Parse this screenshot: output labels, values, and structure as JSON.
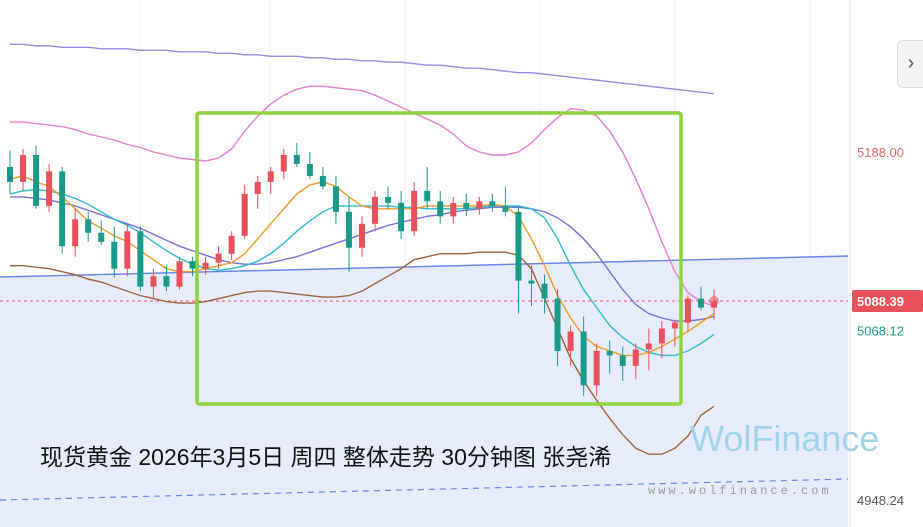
{
  "caption": "现货黄金 2026年3月5日 周四 整体走势 30分钟图 张尧浠",
  "watermark": {
    "brand": "WolFinance",
    "url": "www.wolfinance.com"
  },
  "nav": {
    "icon": "chevron-right-icon"
  },
  "colors": {
    "up": "#e8505b",
    "down": "#1a9a8a",
    "ma_fast": "#f59a23",
    "ma_mid": "#2bbcd0",
    "ma_slow": "#7a72d8",
    "bb_upper": "#e77fd1",
    "bb_lower": "#a0623a",
    "ma_long": "#9a8ae6",
    "trend_line": "#6a86e8",
    "zone_fill": "#e6ebfc",
    "highlight_box": "#8bd43c",
    "current_price": "#e8505b",
    "low_price": "#1a9a8a"
  },
  "chart_data": {
    "type": "candlestick",
    "timeframe": "30分钟",
    "y_axis_labels": [
      {
        "value": 5188.0,
        "text": "5188.00",
        "kind": "level"
      },
      {
        "value": 5088.39,
        "text": "5088.39",
        "kind": "current"
      },
      {
        "value": 5068.12,
        "text": "5068.12",
        "kind": "low"
      },
      {
        "value": 4948.24,
        "text": "4948.24",
        "kind": "support"
      }
    ],
    "current_price": 5088.39,
    "candles": [
      [
        5178,
        5189,
        5160,
        5168
      ],
      [
        5168,
        5190,
        5162,
        5186
      ],
      [
        5186,
        5192,
        5150,
        5152
      ],
      [
        5152,
        5180,
        5148,
        5175
      ],
      [
        5175,
        5178,
        5120,
        5125
      ],
      [
        5125,
        5150,
        5118,
        5143
      ],
      [
        5143,
        5148,
        5128,
        5134
      ],
      [
        5134,
        5142,
        5126,
        5128
      ],
      [
        5128,
        5138,
        5104,
        5110
      ],
      [
        5110,
        5140,
        5105,
        5135
      ],
      [
        5135,
        5138,
        5095,
        5098
      ],
      [
        5098,
        5110,
        5090,
        5105
      ],
      [
        5105,
        5112,
        5095,
        5098
      ],
      [
        5098,
        5118,
        5096,
        5115
      ],
      [
        5115,
        5118,
        5105,
        5110
      ],
      [
        5110,
        5118,
        5106,
        5114
      ],
      [
        5114,
        5125,
        5110,
        5120
      ],
      [
        5120,
        5135,
        5116,
        5132
      ],
      [
        5132,
        5166,
        5130,
        5160
      ],
      [
        5160,
        5172,
        5150,
        5168
      ],
      [
        5168,
        5178,
        5160,
        5175
      ],
      [
        5175,
        5190,
        5170,
        5186
      ],
      [
        5186,
        5194,
        5178,
        5180
      ],
      [
        5180,
        5188,
        5170,
        5172
      ],
      [
        5172,
        5178,
        5163,
        5165
      ],
      [
        5165,
        5172,
        5140,
        5148
      ],
      [
        5148,
        5158,
        5108,
        5124
      ],
      [
        5124,
        5145,
        5118,
        5140
      ],
      [
        5140,
        5162,
        5135,
        5158
      ],
      [
        5158,
        5165,
        5150,
        5154
      ],
      [
        5154,
        5162,
        5130,
        5135
      ],
      [
        5135,
        5168,
        5132,
        5162
      ],
      [
        5162,
        5178,
        5150,
        5155
      ],
      [
        5155,
        5162,
        5140,
        5145
      ],
      [
        5145,
        5158,
        5140,
        5154
      ],
      [
        5154,
        5160,
        5145,
        5150
      ],
      [
        5150,
        5158,
        5146,
        5155
      ],
      [
        5155,
        5160,
        5148,
        5152
      ],
      [
        5152,
        5165,
        5145,
        5148
      ],
      [
        5148,
        5152,
        5080,
        5102
      ],
      [
        5102,
        5112,
        5085,
        5100
      ],
      [
        5100,
        5106,
        5080,
        5090
      ],
      [
        5090,
        5096,
        5045,
        5055
      ],
      [
        5055,
        5072,
        5045,
        5068
      ],
      [
        5068,
        5078,
        5025,
        5032
      ],
      [
        5032,
        5060,
        5025,
        5055
      ],
      [
        5055,
        5062,
        5040,
        5052
      ],
      [
        5052,
        5058,
        5035,
        5045
      ],
      [
        5045,
        5060,
        5036,
        5056
      ],
      [
        5056,
        5070,
        5042,
        5060
      ],
      [
        5060,
        5075,
        5050,
        5070
      ],
      [
        5070,
        5076,
        5058,
        5074
      ],
      [
        5074,
        5092,
        5068,
        5090
      ],
      [
        5090,
        5098,
        5082,
        5084
      ],
      [
        5084,
        5096,
        5076,
        5088
      ]
    ],
    "ma_fast": [
      5170,
      5172,
      5168,
      5165,
      5158,
      5150,
      5142,
      5137,
      5132,
      5128,
      5122,
      5116,
      5110,
      5108,
      5108,
      5110,
      5112,
      5114,
      5120,
      5130,
      5140,
      5150,
      5160,
      5166,
      5168,
      5165,
      5158,
      5152,
      5150,
      5150,
      5150,
      5150,
      5152,
      5152,
      5152,
      5152,
      5152,
      5153,
      5152,
      5145,
      5130,
      5112,
      5092,
      5077,
      5065,
      5058,
      5055,
      5052,
      5052,
      5054,
      5058,
      5063,
      5068,
      5074,
      5080
    ],
    "ma_mid": [
      5160,
      5162,
      5163,
      5162,
      5160,
      5157,
      5153,
      5148,
      5143,
      5139,
      5134,
      5128,
      5122,
      5117,
      5113,
      5110,
      5109,
      5110,
      5112,
      5115,
      5120,
      5127,
      5135,
      5142,
      5148,
      5152,
      5152,
      5152,
      5152,
      5152,
      5151,
      5151,
      5150,
      5150,
      5150,
      5150,
      5151,
      5152,
      5152,
      5152,
      5150,
      5144,
      5130,
      5112,
      5096,
      5084,
      5072,
      5064,
      5058,
      5054,
      5052,
      5052,
      5055,
      5060,
      5066
    ],
    "ma_slow": [
      5158,
      5158,
      5157,
      5156,
      5154,
      5152,
      5149,
      5146,
      5143,
      5140,
      5137,
      5133,
      5129,
      5125,
      5122,
      5119,
      5116,
      5114,
      5113,
      5113,
      5114,
      5116,
      5118,
      5121,
      5124,
      5127,
      5130,
      5133,
      5136,
      5139,
      5141,
      5143,
      5145,
      5146,
      5148,
      5149,
      5150,
      5151,
      5151,
      5151,
      5150,
      5148,
      5144,
      5138,
      5130,
      5120,
      5108,
      5096,
      5086,
      5080,
      5077,
      5075,
      5075,
      5076,
      5078
    ],
    "bb_upper": [
      5208,
      5208,
      5207,
      5206,
      5205,
      5203,
      5200,
      5198,
      5196,
      5193,
      5191,
      5188,
      5186,
      5184,
      5183,
      5182,
      5184,
      5190,
      5202,
      5212,
      5220,
      5226,
      5230,
      5232,
      5232,
      5231,
      5230,
      5229,
      5226,
      5222,
      5218,
      5214,
      5210,
      5206,
      5200,
      5192,
      5188,
      5186,
      5186,
      5188,
      5194,
      5203,
      5211,
      5217,
      5216,
      5212,
      5202,
      5188,
      5170,
      5150,
      5128,
      5108,
      5094,
      5088,
      5085
    ],
    "bb_lower": [
      5112,
      5112,
      5111,
      5110,
      5108,
      5106,
      5103,
      5101,
      5098,
      5095,
      5092,
      5090,
      5088,
      5087,
      5087,
      5088,
      5090,
      5092,
      5094,
      5095,
      5095,
      5094,
      5093,
      5092,
      5091,
      5091,
      5092,
      5095,
      5100,
      5105,
      5110,
      5116,
      5118,
      5120,
      5120,
      5120,
      5121,
      5121,
      5121,
      5119,
      5110,
      5090,
      5070,
      5050,
      5035,
      5022,
      5010,
      4999,
      4990,
      4986,
      4986,
      4990,
      4998,
      5012,
      5018
    ],
    "ma_long": [
      5260,
      5260,
      5259,
      5259,
      5258,
      5258,
      5258,
      5257,
      5257,
      5257,
      5256,
      5256,
      5256,
      5255,
      5255,
      5255,
      5254,
      5254,
      5253,
      5253,
      5252,
      5252,
      5252,
      5251,
      5251,
      5250,
      5250,
      5249,
      5249,
      5248,
      5248,
      5247,
      5246,
      5246,
      5245,
      5244,
      5244,
      5243,
      5242,
      5241,
      5241,
      5240,
      5239,
      5238,
      5237,
      5236,
      5235,
      5234,
      5233,
      5232,
      5231,
      5230,
      5229,
      5228,
      5227
    ]
  }
}
